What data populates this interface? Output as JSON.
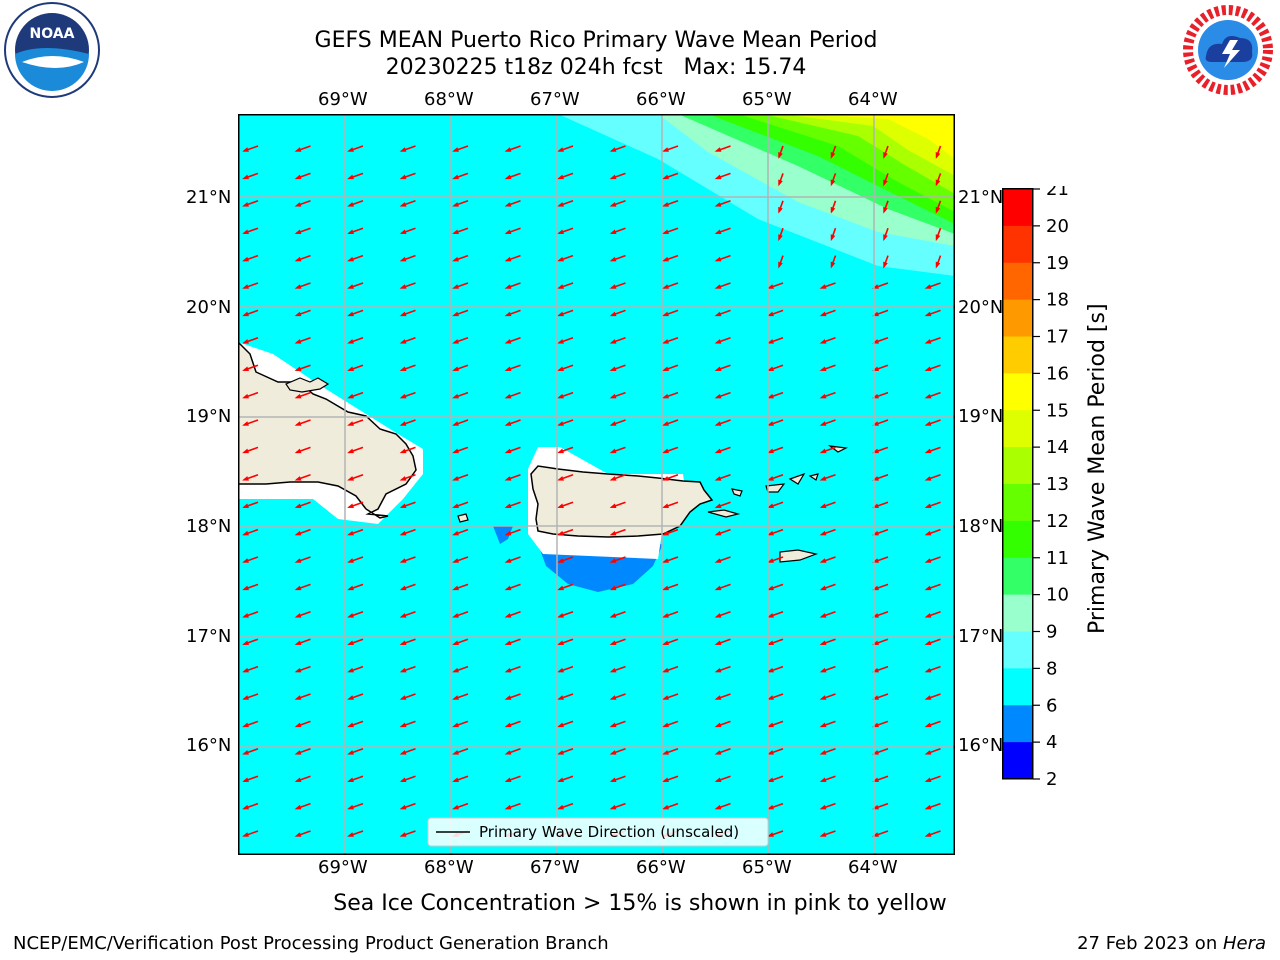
{
  "title_line1": "GEFS MEAN Puerto Rico Primary Wave Mean Period",
  "title_line2": "20230225 t18z 024h fcst   Max: 15.74",
  "lon_labels": [
    "69°W",
    "68°W",
    "67°W",
    "66°W",
    "65°W",
    "64°W"
  ],
  "lat_labels": [
    "21°N",
    "20°N",
    "19°N",
    "18°N",
    "17°N",
    "16°N"
  ],
  "legend_label": "Primary Wave Direction (unscaled)",
  "colorbar": {
    "label": "Primary Wave Mean Period [s]",
    "ticks": [
      "21",
      "20",
      "19",
      "18",
      "17",
      "16",
      "15",
      "14",
      "13",
      "12",
      "11",
      "10",
      "9",
      "8",
      "6",
      "4",
      "2"
    ],
    "colors": [
      "#ff0000",
      "#ff3300",
      "#ff6600",
      "#ff9900",
      "#ffcc00",
      "#ffff00",
      "#ddff00",
      "#aaff00",
      "#66ff00",
      "#33ff00",
      "#33ff66",
      "#99ffcc",
      "#66ffff",
      "#00ffff",
      "#0088ff",
      "#0000ff"
    ]
  },
  "ice_note": "Sea Ice Concentration > 15% is shown in pink to yellow",
  "footer_left": "NCEP/EMC/Verification Post Processing Product Generation Branch",
  "footer_date": "27 Feb 2023 on ",
  "footer_machine": "Hera",
  "logos": {
    "noaa": "NOAA",
    "nws_icon": "national-weather-service-logo"
  },
  "map_colors": {
    "ocean": "#00ffff",
    "land": "#efecdc",
    "arrow": "#ff0000",
    "grid": "#b3b3b3"
  }
}
